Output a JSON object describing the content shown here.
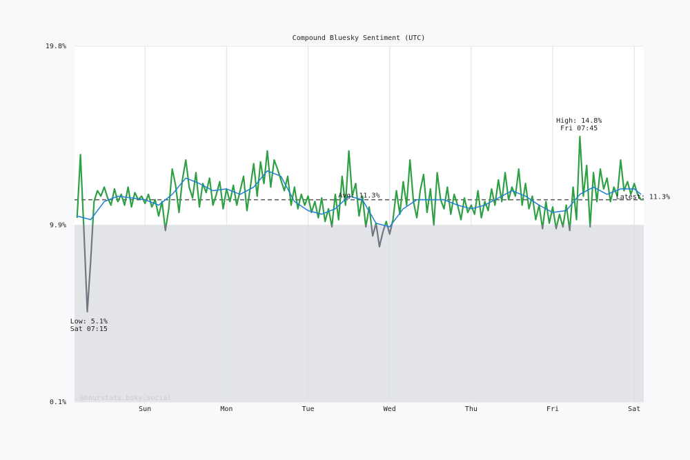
{
  "chart_data": {
    "type": "line",
    "title": "Compound Bluesky Sentiment (UTC)",
    "watermark": "@hourstats.bsky.social",
    "xlim": [
      3.25,
      170.8
    ],
    "xticks": [
      {
        "value": 24,
        "label": "Sun"
      },
      {
        "value": 48,
        "label": "Mon"
      },
      {
        "value": 72,
        "label": "Tue"
      },
      {
        "value": 96,
        "label": "Wed"
      },
      {
        "value": 120,
        "label": "Thu"
      },
      {
        "value": 144,
        "label": "Fri"
      },
      {
        "value": 168,
        "label": "Sat"
      }
    ],
    "ylim": [
      0.1,
      19.8
    ],
    "yticks": [
      {
        "value": 0.1,
        "label": "0.1%"
      },
      {
        "value": 9.9,
        "label": "9.9%"
      },
      {
        "value": 19.8,
        "label": "19.8%"
      }
    ],
    "threshold": 9.9,
    "grid": true,
    "series": [
      {
        "name": "Sentiment",
        "color": "#2ea043",
        "below_color": "#6e7681",
        "x": [
          4,
          5,
          6,
          7,
          8,
          9,
          10,
          11,
          12,
          13,
          14,
          15,
          16,
          17,
          18,
          19,
          20,
          21,
          22,
          23,
          24,
          25,
          26,
          27,
          28,
          29,
          30,
          31,
          32,
          33,
          34,
          35,
          36,
          37,
          38,
          39,
          40,
          41,
          42,
          43,
          44,
          45,
          46,
          47,
          48,
          49,
          50,
          51,
          52,
          53,
          54,
          55,
          56,
          57,
          58,
          59,
          60,
          61,
          62,
          63,
          64,
          65,
          66,
          67,
          68,
          69,
          70,
          71,
          72,
          73,
          74,
          75,
          76,
          77,
          78,
          79,
          80,
          81,
          82,
          83,
          84,
          85,
          86,
          87,
          88,
          89,
          90,
          91,
          92,
          93,
          94,
          95,
          96,
          97,
          98,
          99,
          100,
          101,
          102,
          103,
          104,
          105,
          106,
          107,
          108,
          109,
          110,
          111,
          112,
          113,
          114,
          115,
          116,
          117,
          118,
          119,
          120,
          121,
          122,
          123,
          124,
          125,
          126,
          127,
          128,
          129,
          130,
          131,
          132,
          133,
          134,
          135,
          136,
          137,
          138,
          139,
          140,
          141,
          142,
          143,
          144,
          145,
          146,
          147,
          148,
          149,
          150,
          151,
          152,
          153,
          154,
          155,
          156,
          157,
          158,
          159,
          160,
          161,
          162,
          163,
          164,
          165,
          166,
          167,
          168,
          169,
          170
        ],
        "values": [
          10.3,
          13.8,
          9.7,
          5.1,
          7.9,
          11.2,
          11.8,
          11.5,
          12.0,
          11.4,
          11.0,
          11.9,
          11.2,
          11.6,
          11.0,
          12.0,
          10.9,
          11.7,
          11.3,
          11.5,
          11.1,
          11.6,
          10.9,
          11.3,
          10.4,
          11.2,
          9.6,
          10.8,
          13.0,
          12.1,
          10.6,
          12.4,
          13.5,
          12.0,
          11.4,
          12.8,
          10.9,
          12.2,
          11.7,
          12.5,
          11.0,
          11.6,
          12.3,
          10.8,
          11.9,
          11.2,
          12.1,
          11.0,
          11.8,
          12.6,
          10.7,
          12.0,
          13.3,
          11.5,
          13.4,
          12.2,
          14.0,
          12.0,
          13.5,
          13.0,
          12.4,
          11.8,
          12.6,
          11.0,
          12.0,
          10.8,
          11.6,
          11.0,
          11.5,
          10.6,
          11.2,
          10.3,
          11.4,
          10.1,
          10.8,
          9.8,
          11.6,
          10.2,
          12.6,
          11.0,
          14.0,
          11.5,
          12.2,
          10.4,
          11.5,
          9.8,
          10.9,
          9.3,
          10.0,
          8.7,
          9.5,
          10.1,
          9.4,
          10.2,
          11.8,
          10.5,
          12.3,
          11.0,
          13.5,
          11.2,
          10.3,
          11.8,
          12.7,
          10.6,
          11.9,
          9.9,
          12.8,
          11.3,
          10.8,
          12.0,
          10.5,
          11.6,
          11.0,
          10.2,
          11.4,
          10.6,
          11.0,
          10.5,
          11.8,
          10.3,
          11.2,
          10.7,
          11.9,
          11.0,
          12.4,
          11.2,
          12.8,
          11.3,
          12.0,
          11.5,
          13.0,
          11.0,
          12.2,
          10.8,
          11.5,
          10.2,
          11.0,
          9.7,
          11.2,
          10.0,
          10.9,
          9.7,
          10.5,
          9.8,
          11.0,
          9.6,
          12.0,
          10.2,
          14.8,
          11.5,
          13.2,
          9.8,
          12.8,
          11.2,
          13.0,
          11.9,
          12.5,
          11.2,
          12.0,
          11.5,
          13.5,
          11.8,
          12.3,
          11.6,
          12.2,
          11.6,
          11.3
        ]
      },
      {
        "name": "Trend",
        "color": "#1f7fd6",
        "x": [
          4,
          8,
          12,
          16,
          20,
          24,
          28,
          32,
          36,
          40,
          44,
          48,
          52,
          56,
          60,
          64,
          68,
          72,
          76,
          80,
          84,
          88,
          92,
          96,
          100,
          104,
          108,
          112,
          116,
          120,
          124,
          128,
          132,
          136,
          140,
          144,
          148,
          152,
          156,
          160,
          164,
          168,
          170
        ],
        "values": [
          10.4,
          10.2,
          11.2,
          11.5,
          11.4,
          11.3,
          11.0,
          11.6,
          12.5,
          12.2,
          11.8,
          11.9,
          11.6,
          12.0,
          12.9,
          12.6,
          11.2,
          10.7,
          10.5,
          10.8,
          11.5,
          11.3,
          10.0,
          9.8,
          10.8,
          11.3,
          11.3,
          11.3,
          11.0,
          10.8,
          11.0,
          11.4,
          11.8,
          11.5,
          11.0,
          10.6,
          10.7,
          11.6,
          12.0,
          11.6,
          11.9,
          11.9,
          11.6
        ]
      }
    ],
    "annotations": {
      "high": {
        "value": 14.8,
        "x": 151.75,
        "label": "High: 14.8%",
        "time": "Fri 07:45"
      },
      "low": {
        "value": 5.1,
        "x": 7.25,
        "label": "Low: 5.1%",
        "time": "Sat 07:15"
      },
      "avg": {
        "value": 11.3,
        "label": "Avg: 11.3%"
      },
      "latest": {
        "value": 11.3,
        "label": "Latest: 11.3%"
      }
    }
  }
}
